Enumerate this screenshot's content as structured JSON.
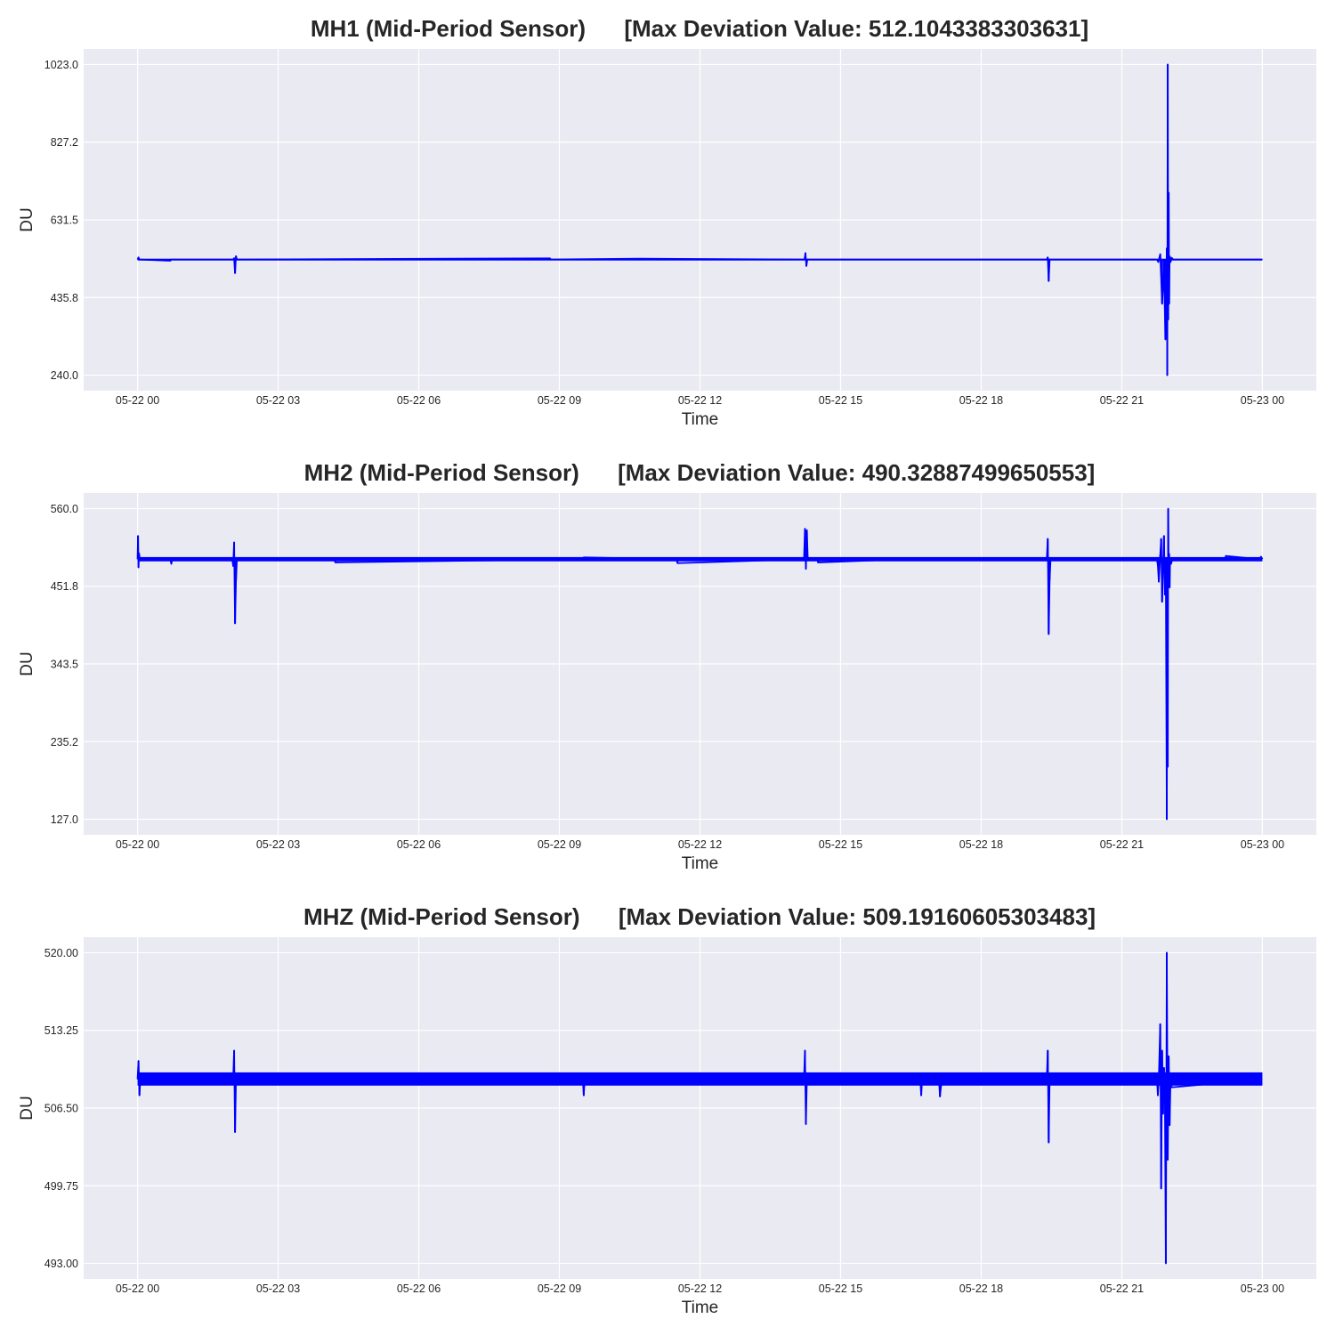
{
  "chart_data": [
    {
      "type": "line",
      "title": "MH1 (Mid-Period Sensor)      [Max Deviation Value: 512.1043383303631]",
      "xlabel": "Time",
      "ylabel": "DU",
      "x_tick_labels": [
        "05-22 00",
        "05-22 03",
        "05-22 06",
        "05-22 09",
        "05-22 12",
        "05-22 15",
        "05-22 18",
        "05-22 21",
        "05-23 00"
      ],
      "y_tick_labels": [
        "240.0",
        "435.8",
        "631.5",
        "827.2",
        "1023.0"
      ],
      "y_ticks": [
        240.0,
        435.8,
        631.5,
        827.2,
        1023.0
      ],
      "xlim_hours": [
        -1.15,
        25.15
      ],
      "ylim": [
        200.9,
        1062.1
      ],
      "grid": true,
      "series": [
        {
          "color": "#0000ff",
          "baseline": 531.5,
          "band": [
            529.5,
            533.5
          ],
          "x_hours": [
            0,
            0.02,
            0.04,
            0.7,
            0.72,
            2.04,
            2.06,
            2.08,
            2.1,
            2.12,
            8.8,
            8.82,
            10.7,
            14.23,
            14.25,
            14.27,
            14.29,
            19.4,
            19.42,
            19.44,
            19.46,
            21.75,
            21.78,
            21.82,
            21.86,
            21.9,
            21.93,
            21.96,
            21.97,
            21.98,
            21.99,
            22.0,
            22.01,
            22.02,
            22.03,
            22.04,
            22.06,
            22.1,
            24.0
          ],
          "values": [
            531.5,
            537.0,
            531.5,
            528.5,
            531.5,
            531.5,
            535.0,
            497.0,
            540.0,
            531.5,
            534.5,
            531.5,
            533.5,
            531.5,
            548.0,
            515.0,
            531.5,
            531.5,
            537.0,
            477.0,
            531.5,
            531.5,
            525.0,
            545.0,
            420.0,
            510.0,
            330.0,
            560.0,
            240.0,
            1023.0,
            380.0,
            700.0,
            420.0,
            540.0,
            531.5,
            525.0,
            536.0,
            531.5,
            531.5
          ]
        }
      ]
    },
    {
      "type": "line",
      "title": "MH2 (Mid-Period Sensor)      [Max Deviation Value: 490.32887499650553]",
      "xlabel": "Time",
      "ylabel": "DU",
      "x_tick_labels": [
        "05-22 00",
        "05-22 03",
        "05-22 06",
        "05-22 09",
        "05-22 12",
        "05-22 15",
        "05-22 18",
        "05-22 21",
        "05-23 00"
      ],
      "y_tick_labels": [
        "127.0",
        "235.2",
        "343.5",
        "451.8",
        "560.0"
      ],
      "y_ticks": [
        127.0,
        235.2,
        343.5,
        451.8,
        560.0
      ],
      "xlim_hours": [
        -1.15,
        25.15
      ],
      "ylim": [
        105.3,
        581.7
      ],
      "grid": true,
      "series": [
        {
          "color": "#0000ff",
          "baseline": 489.5,
          "band": [
            486.5,
            492.5
          ],
          "x_hours": [
            0,
            0.01,
            0.02,
            0.03,
            0.05,
            0.7,
            0.72,
            0.74,
            2.02,
            2.04,
            2.06,
            2.08,
            2.1,
            2.12,
            4.2,
            4.22,
            9.5,
            9.52,
            11.5,
            11.52,
            14.22,
            14.24,
            14.26,
            14.28,
            14.3,
            14.5,
            14.52,
            16.8,
            17.2,
            19.4,
            19.42,
            19.44,
            19.46,
            19.48,
            21.75,
            21.77,
            21.79,
            21.82,
            21.84,
            21.86,
            21.9,
            21.92,
            21.94,
            21.96,
            21.97,
            21.98,
            21.99,
            22.0,
            22.01,
            22.02,
            22.03,
            22.05,
            22.08,
            23.2,
            23.22,
            23.95,
            23.97,
            24.0
          ],
          "values": [
            489.5,
            522.0,
            478.0,
            498.0,
            489.5,
            489.5,
            483.0,
            489.5,
            489.5,
            480.0,
            513.0,
            400.0,
            460.0,
            489.5,
            489.5,
            485.0,
            489.5,
            492.0,
            489.5,
            484.0,
            489.5,
            532.0,
            476.0,
            530.0,
            489.5,
            489.5,
            485.0,
            490.5,
            490.5,
            489.5,
            518.0,
            385.0,
            460.0,
            489.5,
            489.5,
            480.0,
            458.0,
            495.0,
            518.0,
            430.0,
            522.0,
            440.0,
            465.0,
            127.0,
            370.0,
            200.0,
            560.0,
            460.0,
            497.0,
            450.0,
            489.5,
            483.0,
            489.5,
            489.5,
            494.0,
            489.5,
            493.0,
            489.5
          ]
        }
      ]
    },
    {
      "type": "line",
      "title": "MHZ (Mid-Period Sensor)      [Max Deviation Value: 509.19160605303483]",
      "xlabel": "Time",
      "ylabel": "DU",
      "x_tick_labels": [
        "05-22 00",
        "05-22 03",
        "05-22 06",
        "05-22 09",
        "05-22 12",
        "05-22 15",
        "05-22 18",
        "05-22 21",
        "05-23 00"
      ],
      "y_tick_labels": [
        "493.00",
        "499.75",
        "506.50",
        "513.25",
        "520.00"
      ],
      "y_ticks": [
        493.0,
        499.75,
        506.5,
        513.25,
        520.0
      ],
      "xlim_hours": [
        -1.15,
        25.15
      ],
      "ylim": [
        491.65,
        521.35
      ],
      "grid": true,
      "series": [
        {
          "color": "#0000ff",
          "baseline": 509.0,
          "band": [
            508.45,
            509.6
          ],
          "x_hours": [
            0,
            0.02,
            0.04,
            0.06,
            2.04,
            2.06,
            2.08,
            2.1,
            9.5,
            9.52,
            9.54,
            14.22,
            14.24,
            14.26,
            14.28,
            16.7,
            16.72,
            16.74,
            17.1,
            17.12,
            17.14,
            17.16,
            19.4,
            19.42,
            19.44,
            19.46,
            21.75,
            21.77,
            21.79,
            21.82,
            21.84,
            21.86,
            21.88,
            21.9,
            21.92,
            21.94,
            21.96,
            21.98,
            22.0,
            22.02,
            22.04,
            22.06,
            24.0
          ],
          "values": [
            509.0,
            510.6,
            507.6,
            509.0,
            509.0,
            511.5,
            504.4,
            509.0,
            509.0,
            507.6,
            509.0,
            509.0,
            511.5,
            505.1,
            509.0,
            509.0,
            507.6,
            509.0,
            509.0,
            507.5,
            508.3,
            509.0,
            509.0,
            511.5,
            503.5,
            509.0,
            509.0,
            507.6,
            509.0,
            513.8,
            499.5,
            511.5,
            506.0,
            510.0,
            507.0,
            493.0,
            520.0,
            502.0,
            511.0,
            505.0,
            509.0,
            508.3,
            509.0
          ]
        }
      ]
    }
  ]
}
